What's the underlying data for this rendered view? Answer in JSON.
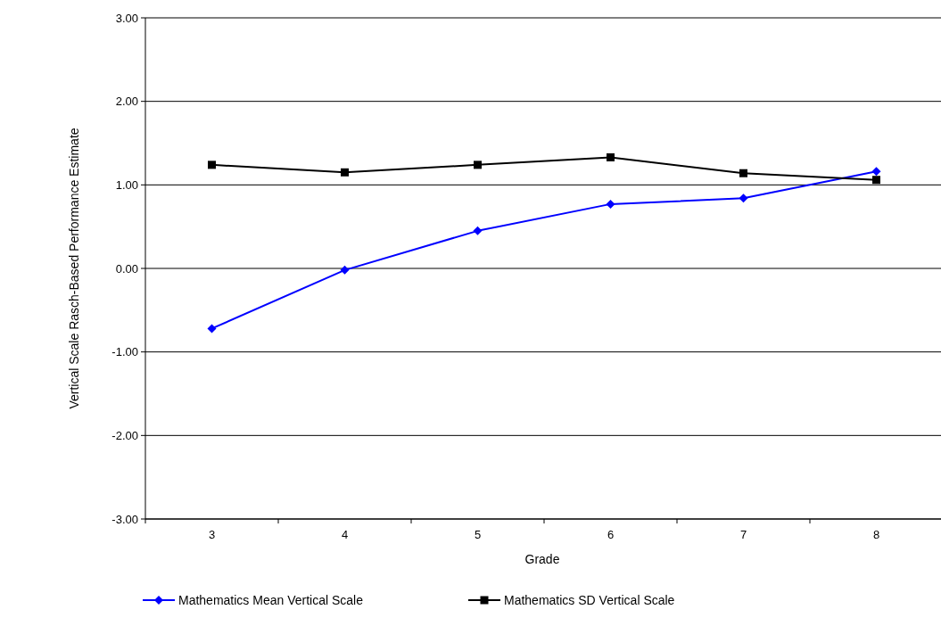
{
  "chart_data": {
    "type": "line",
    "xlabel": "Grade",
    "ylabel": "Vertical Scale Rasch-Based Performance Estimate",
    "categories": [
      "3",
      "4",
      "5",
      "6",
      "7",
      "8"
    ],
    "series": [
      {
        "name": "Mathematics Mean Vertical Scale",
        "color": "#0000ff",
        "marker": "diamond",
        "values": [
          -0.72,
          -0.02,
          0.45,
          0.77,
          0.84,
          1.16
        ]
      },
      {
        "name": "Mathematics SD Vertical Scale",
        "color": "#000000",
        "marker": "square",
        "values": [
          1.24,
          1.15,
          1.24,
          1.33,
          1.14,
          1.06
        ]
      }
    ],
    "ylim": [
      -3,
      3
    ],
    "yticks": [
      {
        "value": -3,
        "label": "-3.00"
      },
      {
        "value": -2,
        "label": "-2.00"
      },
      {
        "value": -1,
        "label": "-1.00"
      },
      {
        "value": 0,
        "label": "0.00"
      },
      {
        "value": 1,
        "label": "1.00"
      },
      {
        "value": 2,
        "label": "2.00"
      },
      {
        "value": 3,
        "label": "3.00"
      }
    ],
    "grid": "y",
    "legend": "bottom"
  }
}
